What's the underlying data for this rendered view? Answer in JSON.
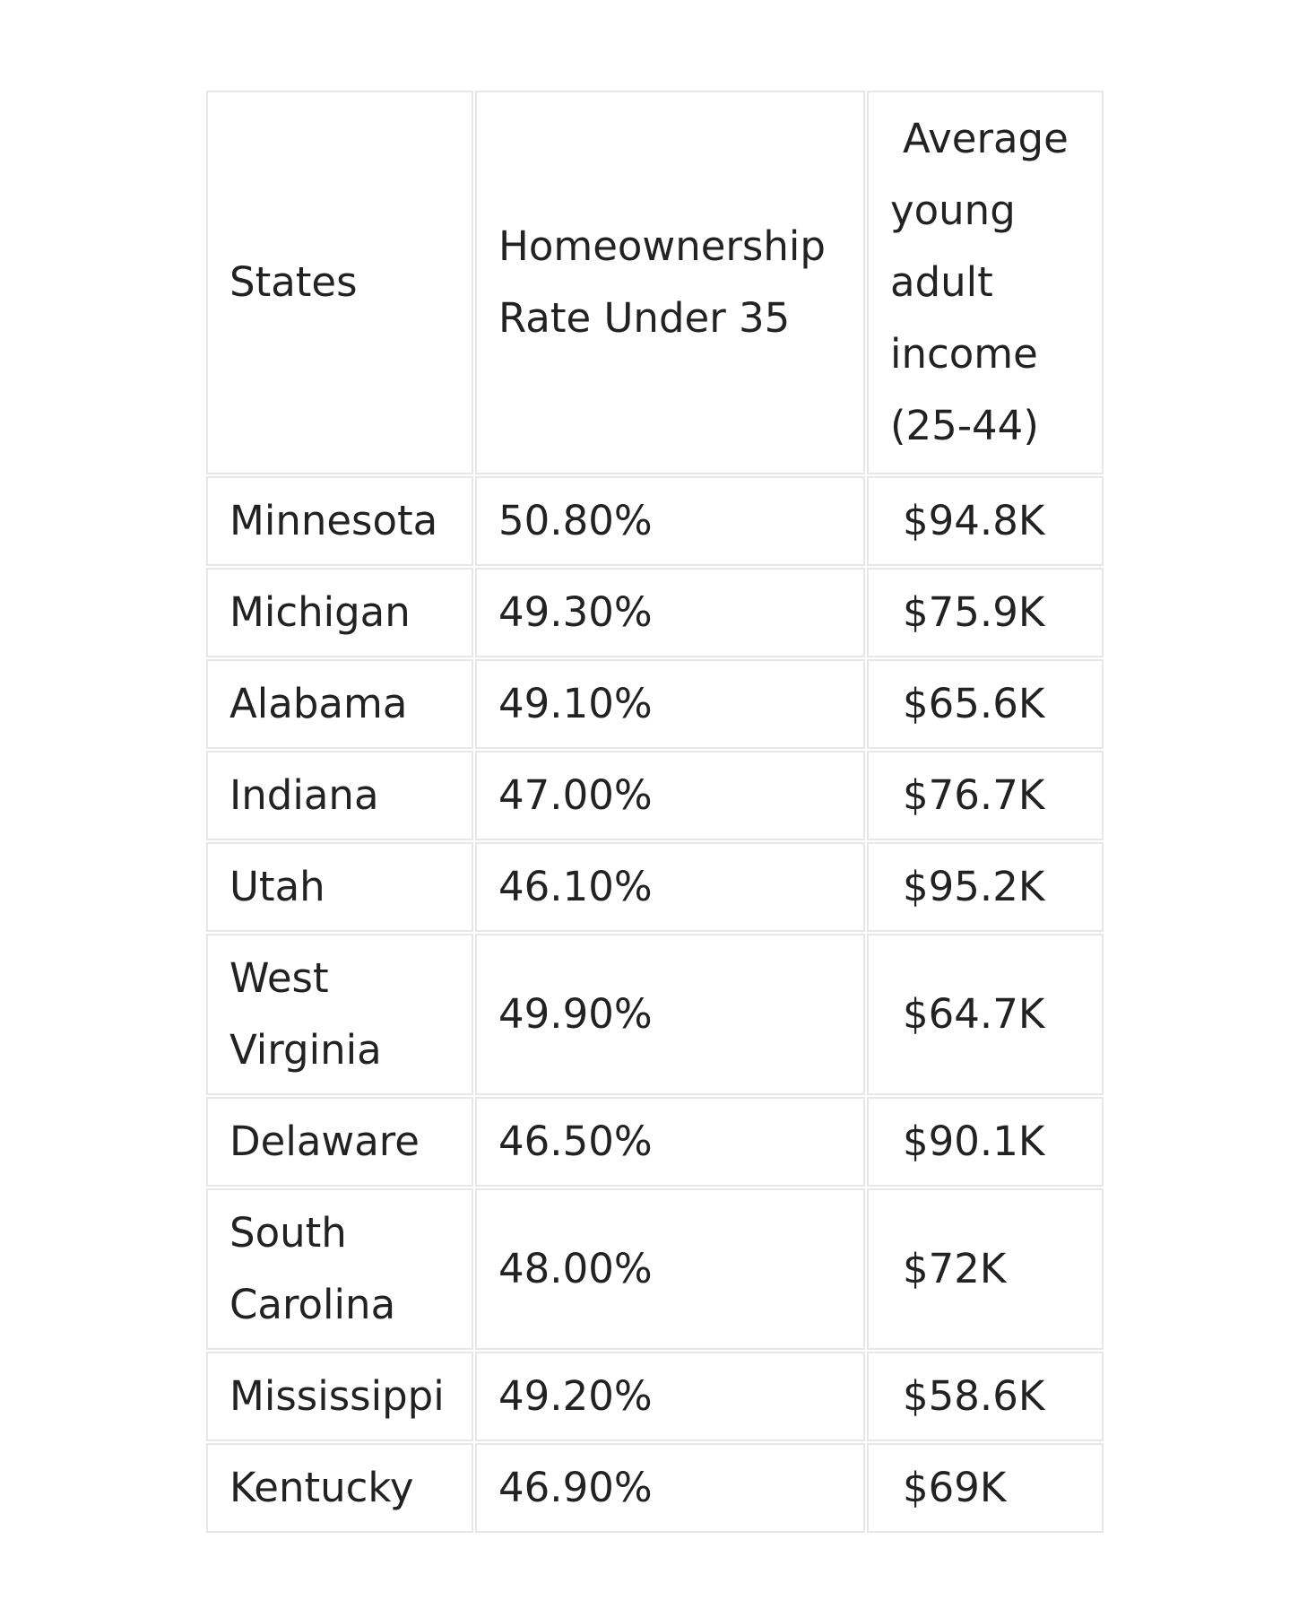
{
  "page": {
    "background": "#ffffff"
  },
  "colors": {
    "cell_border": "#e7e7e7",
    "text": "#222222",
    "cell_background": "#ffffff"
  },
  "table": {
    "columns": [
      "States",
      "Homeownership Rate Under 35",
      "Average young adult income (25-44)"
    ],
    "rows": [
      {
        "state": "Minnesota",
        "rate": "50.80%",
        "income": "$94.8K"
      },
      {
        "state": "Michigan",
        "rate": "49.30%",
        "income": "$75.9K"
      },
      {
        "state": "Alabama",
        "rate": "49.10%",
        "income": "$65.6K"
      },
      {
        "state": "Indiana",
        "rate": "47.00%",
        "income": "$76.7K"
      },
      {
        "state": "Utah",
        "rate": "46.10%",
        "income": "$95.2K"
      },
      {
        "state": "West Virginia",
        "rate": "49.90%",
        "income": "$64.7K"
      },
      {
        "state": "Delaware",
        "rate": "46.50%",
        "income": "$90.1K"
      },
      {
        "state": "South Carolina",
        "rate": "48.00%",
        "income": "$72K"
      },
      {
        "state": "Mississippi",
        "rate": "49.20%",
        "income": "$58.6K"
      },
      {
        "state": "Kentucky",
        "rate": "46.90%",
        "income": "$69K"
      }
    ]
  }
}
